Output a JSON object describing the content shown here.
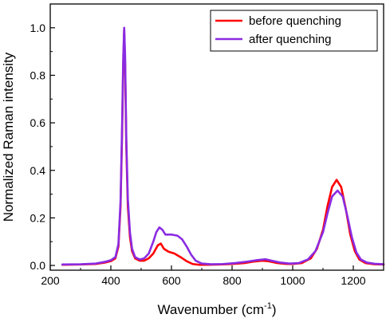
{
  "chart_data": {
    "type": "line",
    "title": "",
    "xlabel": "Wavenumber (cm",
    "xlabel_sup": "-1",
    "xlabel_close": ")",
    "ylabel": "Normalized Raman intensity",
    "xlim": [
      200,
      1300
    ],
    "ylim": [
      -0.02,
      1.1
    ],
    "xticks": [
      200,
      400,
      600,
      800,
      1000,
      1200
    ],
    "xtick_labels": [
      "200",
      "400",
      "600",
      "800",
      "1000",
      "1200"
    ],
    "yticks": [
      0.0,
      0.2,
      0.4,
      0.6,
      0.8,
      1.0
    ],
    "ytick_labels": [
      "0.0",
      "0.2",
      "0.4",
      "0.6",
      "0.8",
      "1.0"
    ],
    "legend_position": "top-right",
    "series": [
      {
        "name": "before quenching",
        "color": "#ff0000",
        "points": [
          [
            240,
            0.003
          ],
          [
            300,
            0.004
          ],
          [
            350,
            0.006
          ],
          [
            380,
            0.012
          ],
          [
            400,
            0.018
          ],
          [
            415,
            0.03
          ],
          [
            425,
            0.08
          ],
          [
            432,
            0.25
          ],
          [
            437,
            0.55
          ],
          [
            441,
            0.85
          ],
          [
            444,
            0.99
          ],
          [
            447,
            0.85
          ],
          [
            451,
            0.5
          ],
          [
            456,
            0.25
          ],
          [
            463,
            0.12
          ],
          [
            470,
            0.06
          ],
          [
            480,
            0.03
          ],
          [
            495,
            0.02
          ],
          [
            510,
            0.02
          ],
          [
            525,
            0.03
          ],
          [
            540,
            0.05
          ],
          [
            555,
            0.085
          ],
          [
            565,
            0.092
          ],
          [
            575,
            0.07
          ],
          [
            590,
            0.058
          ],
          [
            610,
            0.05
          ],
          [
            630,
            0.035
          ],
          [
            650,
            0.018
          ],
          [
            670,
            0.006
          ],
          [
            690,
            0.003
          ],
          [
            720,
            0.003
          ],
          [
            760,
            0.004
          ],
          [
            800,
            0.006
          ],
          [
            840,
            0.01
          ],
          [
            870,
            0.016
          ],
          [
            900,
            0.02
          ],
          [
            920,
            0.018
          ],
          [
            950,
            0.01
          ],
          [
            980,
            0.006
          ],
          [
            1000,
            0.006
          ],
          [
            1030,
            0.01
          ],
          [
            1060,
            0.03
          ],
          [
            1080,
            0.07
          ],
          [
            1100,
            0.15
          ],
          [
            1115,
            0.25
          ],
          [
            1130,
            0.33
          ],
          [
            1145,
            0.36
          ],
          [
            1160,
            0.33
          ],
          [
            1175,
            0.24
          ],
          [
            1190,
            0.13
          ],
          [
            1205,
            0.06
          ],
          [
            1220,
            0.025
          ],
          [
            1240,
            0.01
          ],
          [
            1270,
            0.005
          ],
          [
            1300,
            0.004
          ]
        ]
      },
      {
        "name": "after quenching",
        "color": "#8a2be2",
        "points": [
          [
            240,
            0.004
          ],
          [
            300,
            0.005
          ],
          [
            350,
            0.008
          ],
          [
            380,
            0.015
          ],
          [
            400,
            0.022
          ],
          [
            415,
            0.035
          ],
          [
            425,
            0.09
          ],
          [
            432,
            0.27
          ],
          [
            437,
            0.58
          ],
          [
            441,
            0.88
          ],
          [
            444,
            1.0
          ],
          [
            447,
            0.88
          ],
          [
            451,
            0.53
          ],
          [
            456,
            0.28
          ],
          [
            463,
            0.14
          ],
          [
            470,
            0.07
          ],
          [
            480,
            0.035
          ],
          [
            495,
            0.025
          ],
          [
            510,
            0.03
          ],
          [
            525,
            0.05
          ],
          [
            540,
            0.1
          ],
          [
            550,
            0.14
          ],
          [
            560,
            0.16
          ],
          [
            570,
            0.15
          ],
          [
            580,
            0.13
          ],
          [
            600,
            0.13
          ],
          [
            620,
            0.125
          ],
          [
            635,
            0.11
          ],
          [
            650,
            0.08
          ],
          [
            665,
            0.045
          ],
          [
            680,
            0.02
          ],
          [
            700,
            0.008
          ],
          [
            730,
            0.005
          ],
          [
            770,
            0.006
          ],
          [
            810,
            0.01
          ],
          [
            850,
            0.016
          ],
          [
            880,
            0.022
          ],
          [
            910,
            0.026
          ],
          [
            930,
            0.02
          ],
          [
            960,
            0.012
          ],
          [
            990,
            0.008
          ],
          [
            1020,
            0.01
          ],
          [
            1050,
            0.025
          ],
          [
            1075,
            0.06
          ],
          [
            1100,
            0.14
          ],
          [
            1115,
            0.22
          ],
          [
            1130,
            0.29
          ],
          [
            1148,
            0.315
          ],
          [
            1165,
            0.29
          ],
          [
            1180,
            0.21
          ],
          [
            1195,
            0.12
          ],
          [
            1210,
            0.055
          ],
          [
            1225,
            0.025
          ],
          [
            1245,
            0.012
          ],
          [
            1270,
            0.007
          ],
          [
            1300,
            0.005
          ]
        ]
      }
    ]
  }
}
